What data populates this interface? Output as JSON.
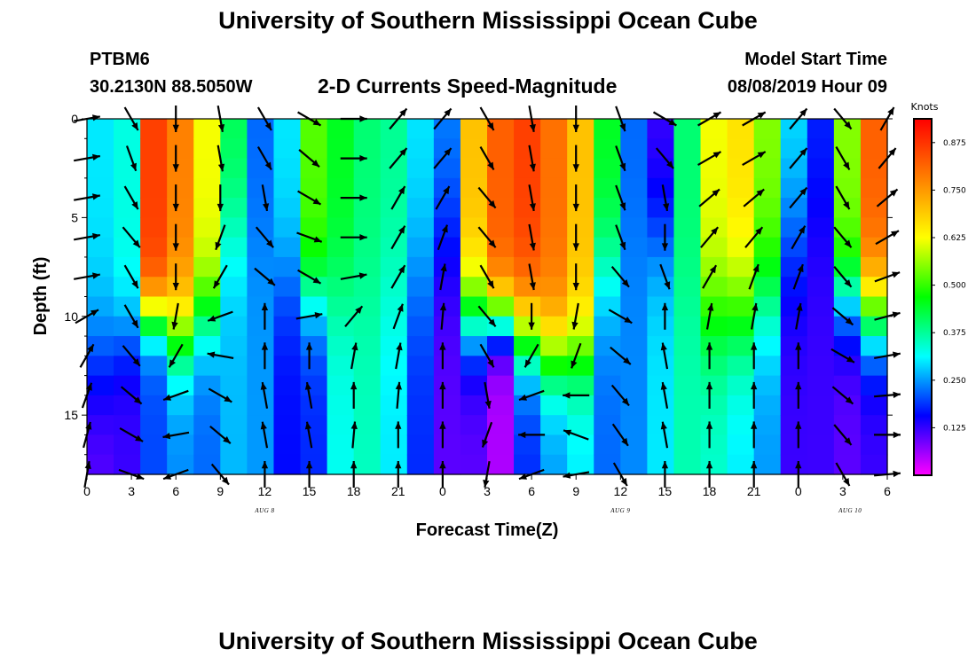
{
  "page": {
    "title_top": "University of Southern Mississippi Ocean Cube",
    "title_bottom": "University of Southern Mississippi Ocean Cube",
    "station_name": "PTBM6",
    "station_coords": "30.2130N 88.5050W",
    "chart_title": "2-D Currents Speed-Magnitude",
    "model_start_label": "Model Start Time",
    "model_start_value": "08/08/2019 Hour 09"
  },
  "colors": {
    "ramp": [
      "#ff00ff",
      "#0000ff",
      "#00ffff",
      "#00ff00",
      "#ffff00",
      "#ff8000",
      "#ff0000"
    ],
    "arrow": "#000000",
    "frame": "#000000"
  },
  "chart_data": {
    "type": "heatmap",
    "title": "2-D Currents Speed-Magnitude",
    "xlabel": "Forecast Time(Z)",
    "ylabel": "Depth (ft)",
    "units": "Knots",
    "x_range_hours": [
      0,
      54
    ],
    "y_range_ft": [
      0,
      18
    ],
    "x_ticks": [
      {
        "hour": 0,
        "label": "0"
      },
      {
        "hour": 3,
        "label": "3"
      },
      {
        "hour": 6,
        "label": "6"
      },
      {
        "hour": 9,
        "label": "9"
      },
      {
        "hour": 12,
        "label": "12"
      },
      {
        "hour": 15,
        "label": "15"
      },
      {
        "hour": 18,
        "label": "18"
      },
      {
        "hour": 21,
        "label": "21"
      },
      {
        "hour": 24,
        "label": "0"
      },
      {
        "hour": 27,
        "label": "3"
      },
      {
        "hour": 30,
        "label": "6"
      },
      {
        "hour": 33,
        "label": "9"
      },
      {
        "hour": 36,
        "label": "12"
      },
      {
        "hour": 39,
        "label": "15"
      },
      {
        "hour": 42,
        "label": "18"
      },
      {
        "hour": 45,
        "label": "21"
      },
      {
        "hour": 48,
        "label": "0"
      },
      {
        "hour": 51,
        "label": "3"
      },
      {
        "hour": 54,
        "label": "6"
      }
    ],
    "date_labels": [
      {
        "hour": 12,
        "label": "AUG 8"
      },
      {
        "hour": 36,
        "label": "AUG 9"
      },
      {
        "hour": 51.5,
        "label": "AUG 10"
      }
    ],
    "y_ticks": [
      {
        "depth": 0,
        "label": "0"
      },
      {
        "depth": 5,
        "label": "5"
      },
      {
        "depth": 10,
        "label": "10"
      },
      {
        "depth": 15,
        "label": "15"
      }
    ],
    "colorbar": {
      "min": 0.0,
      "max": 0.9375,
      "ticks": [
        {
          "value": 0.125,
          "label": "0.125"
        },
        {
          "value": 0.25,
          "label": "0.250"
        },
        {
          "value": 0.375,
          "label": "0.375"
        },
        {
          "value": 0.5,
          "label": "0.500"
        },
        {
          "value": 0.625,
          "label": "0.625"
        },
        {
          "value": 0.75,
          "label": "0.750"
        },
        {
          "value": 0.875,
          "label": "0.875"
        }
      ]
    },
    "grid": {
      "columns": 30,
      "rows": 18,
      "column_hours_start": 0,
      "column_hours_step": 1.8,
      "row_depth_start": 0,
      "row_depth_step": 1.0
    },
    "speed_profiles": [
      {
        "hours_center": 0.9,
        "surface": 0.3,
        "bottom": 0.1,
        "cut": 12,
        "width": 4
      },
      {
        "hours_center": 2.7,
        "surface": 0.33,
        "bottom": 0.12,
        "cut": 11,
        "width": 3
      },
      {
        "hours_center": 4.5,
        "surface": 0.86,
        "bottom": 0.2,
        "cut": 10,
        "width": 2
      },
      {
        "hours_center": 6.3,
        "surface": 0.78,
        "bottom": 0.24,
        "cut": 11,
        "width": 3
      },
      {
        "hours_center": 8.1,
        "surface": 0.62,
        "bottom": 0.22,
        "cut": 10,
        "width": 3
      },
      {
        "hours_center": 9.9,
        "surface": 0.42,
        "bottom": 0.27,
        "cut": 6,
        "width": 4
      },
      {
        "hours_center": 11.7,
        "surface": 0.22,
        "bottom": 0.25,
        "cut": 6,
        "width": 4
      },
      {
        "hours_center": 13.5,
        "surface": 0.3,
        "bottom": 0.16,
        "cut": 8,
        "width": 4
      },
      {
        "hours_center": 15.3,
        "surface": 0.52,
        "bottom": 0.18,
        "cut": 9,
        "width": 3
      },
      {
        "hours_center": 17.1,
        "surface": 0.45,
        "bottom": 0.32,
        "cut": 9,
        "width": 4
      },
      {
        "hours_center": 18.9,
        "surface": 0.4,
        "bottom": 0.35,
        "cut": 9,
        "width": 5
      },
      {
        "hours_center": 20.7,
        "surface": 0.38,
        "bottom": 0.3,
        "cut": 9,
        "width": 5
      },
      {
        "hours_center": 22.5,
        "surface": 0.3,
        "bottom": 0.18,
        "cut": 8,
        "width": 5
      },
      {
        "hours_center": 24.3,
        "surface": 0.24,
        "bottom": 0.1,
        "cut": 6,
        "width": 5
      },
      {
        "hours_center": 26.1,
        "surface": 0.7,
        "bottom": 0.1,
        "cut": 10,
        "width": 3
      },
      {
        "hours_center": 27.9,
        "surface": 0.82,
        "bottom": 0.05,
        "cut": 10,
        "width": 2
      },
      {
        "hours_center": 29.7,
        "surface": 0.86,
        "bottom": 0.18,
        "cut": 11,
        "width": 3
      },
      {
        "hours_center": 31.5,
        "surface": 0.8,
        "bottom": 0.25,
        "cut": 12,
        "width": 3
      },
      {
        "hours_center": 33.3,
        "surface": 0.7,
        "bottom": 0.3,
        "cut": 12,
        "width": 3
      },
      {
        "hours_center": 35.1,
        "surface": 0.45,
        "bottom": 0.22,
        "cut": 8,
        "width": 4
      },
      {
        "hours_center": 36.9,
        "surface": 0.22,
        "bottom": 0.24,
        "cut": 6,
        "width": 4
      },
      {
        "hours_center": 38.7,
        "surface": 0.12,
        "bottom": 0.3,
        "cut": 6,
        "width": 4
      },
      {
        "hours_center": 40.5,
        "surface": 0.4,
        "bottom": 0.36,
        "cut": 9,
        "width": 4
      },
      {
        "hours_center": 42.3,
        "surface": 0.62,
        "bottom": 0.34,
        "cut": 10,
        "width": 4
      },
      {
        "hours_center": 44.1,
        "surface": 0.66,
        "bottom": 0.3,
        "cut": 10,
        "width": 4
      },
      {
        "hours_center": 45.9,
        "surface": 0.55,
        "bottom": 0.25,
        "cut": 9,
        "width": 4
      },
      {
        "hours_center": 47.7,
        "surface": 0.3,
        "bottom": 0.12,
        "cut": 6,
        "width": 5
      },
      {
        "hours_center": 49.5,
        "surface": 0.18,
        "bottom": 0.12,
        "cut": 5,
        "width": 5
      },
      {
        "hours_center": 51.3,
        "surface": 0.55,
        "bottom": 0.1,
        "cut": 9,
        "width": 3
      },
      {
        "hours_center": 53.1,
        "surface": 0.82,
        "bottom": 0.12,
        "cut": 10,
        "width": 3
      }
    ],
    "vectors": {
      "hours": [
        0,
        3,
        6,
        9,
        12,
        15,
        18,
        21,
        24,
        27,
        30,
        33,
        36,
        39,
        42,
        45,
        48,
        51,
        54
      ],
      "depths_ft": [
        0,
        2,
        4,
        6,
        8,
        10,
        12,
        14,
        16,
        18
      ],
      "direction_deg": [
        [
          80,
          80,
          80,
          80,
          80,
          60,
          30,
          20,
          15,
          10
        ],
        [
          150,
          160,
          150,
          140,
          150,
          150,
          140,
          130,
          120,
          110
        ],
        [
          180,
          180,
          180,
          180,
          180,
          190,
          210,
          250,
          260,
          250
        ],
        [
          170,
          170,
          180,
          200,
          210,
          250,
          280,
          120,
          130,
          140
        ],
        [
          150,
          150,
          170,
          140,
          130,
          0,
          0,
          350,
          350,
          0
        ],
        [
          120,
          130,
          120,
          110,
          120,
          80,
          0,
          350,
          350,
          0
        ],
        [
          90,
          90,
          90,
          90,
          80,
          40,
          10,
          0,
          5,
          0
        ],
        [
          40,
          40,
          30,
          30,
          30,
          20,
          10,
          5,
          0,
          0
        ],
        [
          40,
          40,
          30,
          20,
          10,
          5,
          0,
          0,
          0,
          0
        ],
        [
          150,
          150,
          140,
          140,
          150,
          140,
          150,
          170,
          200,
          190
        ],
        [
          170,
          170,
          170,
          170,
          170,
          180,
          210,
          250,
          270,
          250
        ],
        [
          180,
          180,
          180,
          180,
          180,
          190,
          200,
          270,
          290,
          260
        ],
        [
          160,
          160,
          160,
          160,
          140,
          120,
          130,
          140,
          145,
          150
        ],
        [
          120,
          140,
          170,
          180,
          160,
          0,
          350,
          350,
          350,
          0
        ],
        [
          60,
          60,
          50,
          40,
          30,
          10,
          0,
          0,
          0,
          0
        ],
        [
          60,
          60,
          50,
          40,
          20,
          10,
          0,
          0,
          0,
          0
        ],
        [
          40,
          40,
          40,
          30,
          20,
          10,
          0,
          0,
          0,
          0
        ],
        [
          140,
          150,
          150,
          140,
          140,
          130,
          120,
          130,
          140,
          150
        ],
        [
          30,
          40,
          50,
          60,
          70,
          75,
          80,
          85,
          90,
          85
        ]
      ]
    }
  }
}
